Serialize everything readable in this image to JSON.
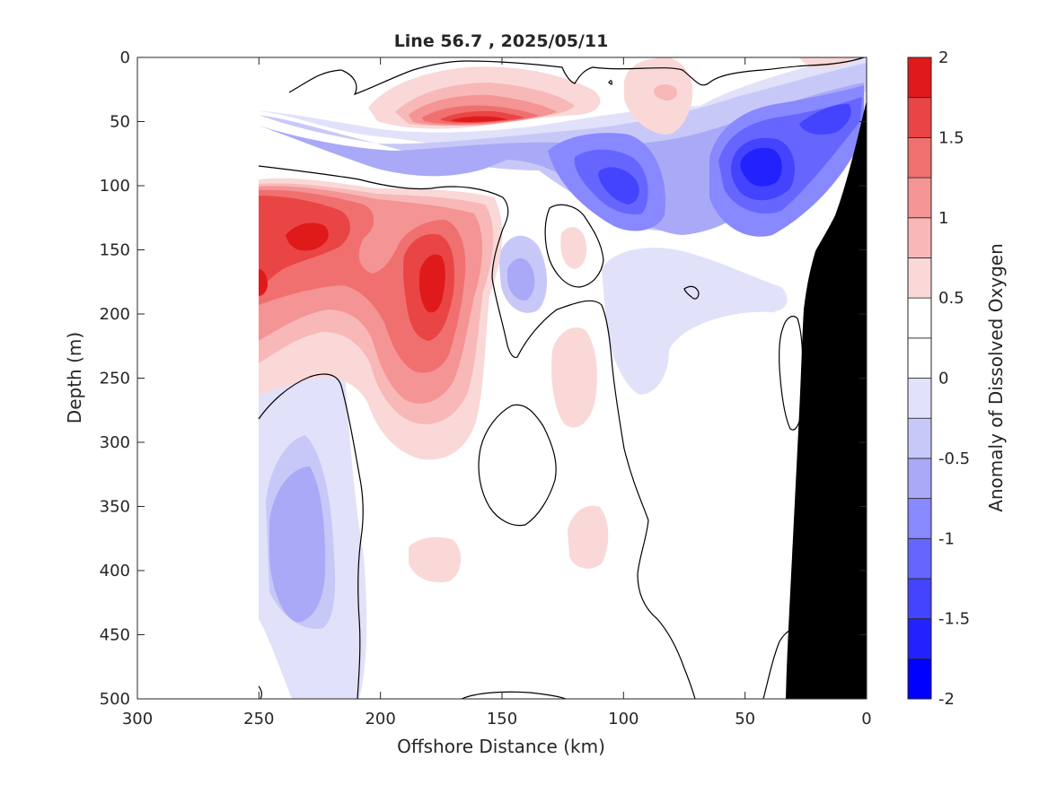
{
  "chart_data": {
    "type": "heatmap",
    "title": "Line 56.7 , 2025/05/11",
    "xlabel": "Offshore Distance (km)",
    "ylabel": "Depth (m)",
    "colorbar_label": "Anomaly of Dissolved Oxygen",
    "xlim": [
      300,
      0
    ],
    "ylim": [
      0,
      500
    ],
    "x_reversed": true,
    "y_reversed": true,
    "x_ticks": [
      "300",
      "250",
      "200",
      "150",
      "100",
      "50",
      "0"
    ],
    "y_ticks": [
      "0",
      "50",
      "100",
      "150",
      "200",
      "250",
      "300",
      "350",
      "400",
      "450",
      "500"
    ],
    "colorbar": {
      "range": [
        -2,
        2
      ],
      "levels": 16,
      "ticks": [
        "2",
        "1.5",
        "1",
        "0.5",
        "0",
        "-0.5",
        "-1",
        "-1.5",
        "-2"
      ],
      "colors": [
        "#0000ff",
        "#2222ff",
        "#4444ff",
        "#6666ff",
        "#8888ff",
        "#a9a9f7",
        "#c8c8f8",
        "#e1e1fa",
        "#ffffff",
        "#ffffff",
        "#fad8d8",
        "#f8b8b8",
        "#f49494",
        "#f07070",
        "#ea4545",
        "#e01a1a"
      ]
    },
    "data_extent_km": [
      250,
      0
    ],
    "seafloor_color": "#000000",
    "features": [
      {
        "label": "surface high",
        "x": 165,
        "y": 47,
        "value": 1.8
      },
      {
        "label": "surface high",
        "x": 82,
        "y": 28,
        "value": 0.6
      },
      {
        "label": "surface high",
        "x": 20,
        "y": 2,
        "value": 0.5
      },
      {
        "label": "subsurface high",
        "x": 225,
        "y": 135,
        "value": 1.6
      },
      {
        "label": "subsurface high",
        "x": 175,
        "y": 170,
        "value": 1.8
      },
      {
        "label": "subsurface high",
        "x": 248,
        "y": 175,
        "value": 1.7
      },
      {
        "label": "high",
        "x": 118,
        "y": 145,
        "value": 0.4
      },
      {
        "label": "high",
        "x": 120,
        "y": 265,
        "value": 0.4
      },
      {
        "label": "high",
        "x": 113,
        "y": 385,
        "value": 0.3
      },
      {
        "label": "high",
        "x": 180,
        "y": 390,
        "value": 0.3
      },
      {
        "label": "low",
        "x": 100,
        "y": 93,
        "value": -1.4
      },
      {
        "label": "low",
        "x": 45,
        "y": 85,
        "value": -1.6
      },
      {
        "label": "low",
        "x": 25,
        "y": 45,
        "value": -1.5
      },
      {
        "label": "low",
        "x": 235,
        "y": 380,
        "value": -0.7
      },
      {
        "label": "low",
        "x": 143,
        "y": 178,
        "value": -0.6
      },
      {
        "label": "low",
        "x": 97,
        "y": 183,
        "value": -0.6
      }
    ]
  }
}
